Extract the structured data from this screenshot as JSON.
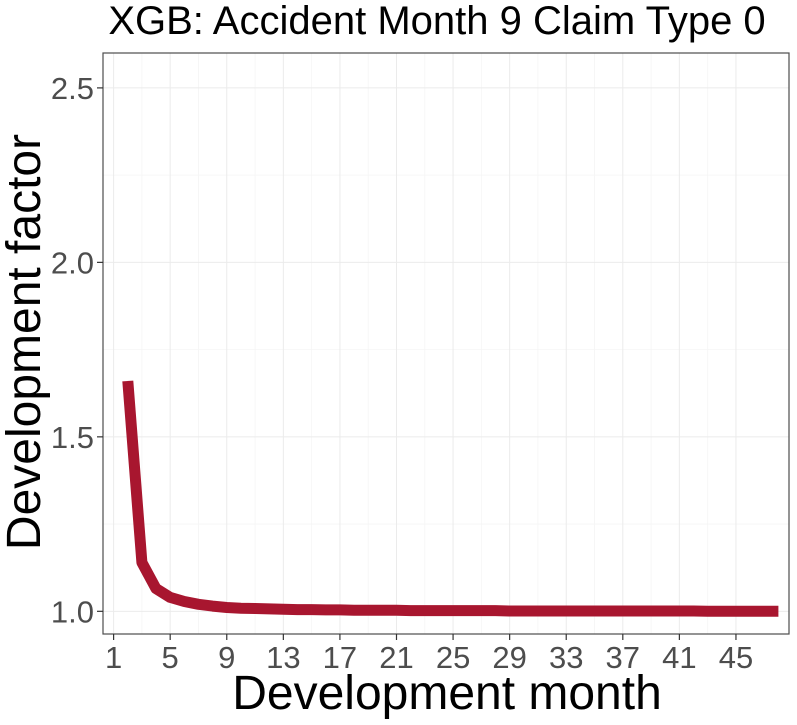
{
  "chart_data": {
    "type": "line",
    "title": "XGB: Accident Month 9 Claim Type 0",
    "xlabel": "Development month",
    "ylabel": "Development factor",
    "xlim": [
      0.25,
      48.75
    ],
    "ylim": [
      0.935,
      2.6
    ],
    "x_ticks": [
      1,
      5,
      9,
      13,
      17,
      21,
      25,
      29,
      33,
      37,
      41,
      45
    ],
    "y_ticks": [
      1.0,
      1.5,
      2.0,
      2.5
    ],
    "y_tick_labels": [
      "1.0",
      "1.5",
      "2.0",
      "2.5"
    ],
    "grid": true,
    "legend": "none",
    "colors": {
      "line": "#A8162F",
      "panel_border": "#4d4d4d",
      "grid": "#ebebeb"
    },
    "series": [
      {
        "x": [
          2,
          3,
          4,
          5,
          6,
          7,
          8,
          9,
          10,
          11,
          12,
          13,
          14,
          15,
          16,
          17,
          18,
          19,
          20,
          21,
          22,
          23,
          24,
          25,
          26,
          27,
          28,
          29,
          30,
          31,
          32,
          33,
          34,
          35,
          36,
          37,
          38,
          39,
          40,
          41,
          42,
          43,
          44,
          45,
          46,
          47,
          48
        ],
        "values": [
          1.66,
          1.14,
          1.065,
          1.04,
          1.028,
          1.02,
          1.015,
          1.011,
          1.009,
          1.008,
          1.007,
          1.006,
          1.005,
          1.005,
          1.004,
          1.004,
          1.003,
          1.003,
          1.003,
          1.003,
          1.002,
          1.002,
          1.002,
          1.002,
          1.002,
          1.002,
          1.002,
          1.001,
          1.001,
          1.001,
          1.001,
          1.001,
          1.001,
          1.001,
          1.001,
          1.001,
          1.001,
          1.001,
          1.001,
          1.001,
          1.001,
          1.0,
          1.0,
          1.0,
          1.0,
          1.0,
          1.0
        ]
      }
    ]
  }
}
